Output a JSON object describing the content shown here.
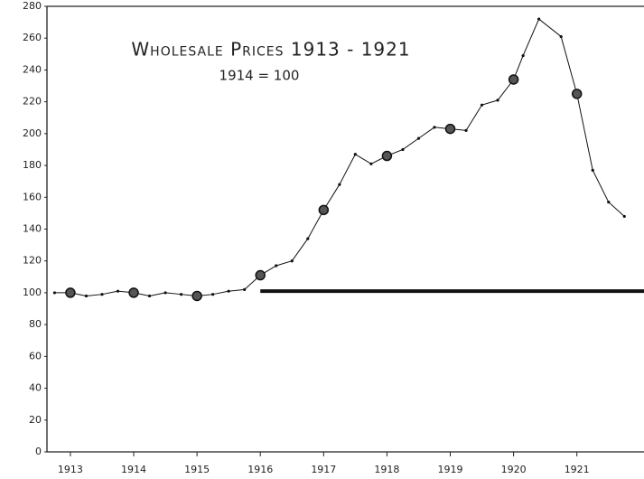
{
  "chart_data": {
    "type": "line",
    "title": "Wholesale Prices 1913 - 1921",
    "subtitle": "1914 = 100",
    "x": [
      1912.75,
      1913,
      1913.25,
      1913.5,
      1913.75,
      1914,
      1914.25,
      1914.5,
      1914.75,
      1915,
      1915.25,
      1915.5,
      1915.75,
      1916,
      1916.25,
      1916.5,
      1916.75,
      1917,
      1917.25,
      1917.5,
      1917.75,
      1918,
      1918.25,
      1918.5,
      1918.75,
      1919,
      1919.25,
      1919.5,
      1919.75,
      1920,
      1920.15,
      1920.4,
      1920.75,
      1921,
      1921.25,
      1921.5,
      1921.75
    ],
    "values": [
      100,
      100,
      98,
      99,
      101,
      100,
      98,
      100,
      99,
      98,
      99,
      101,
      102,
      111,
      117,
      120,
      134,
      152,
      168,
      187,
      181,
      186,
      190,
      197,
      204,
      203,
      202,
      218,
      221,
      234,
      249,
      272,
      261,
      225,
      177,
      157,
      148
    ],
    "color": "#111111",
    "reference_line": {
      "value": 101,
      "from": 1916
    },
    "xlim": [
      1912.63,
      1922.06
    ],
    "xticks": [
      1913,
      1914,
      1915,
      1916,
      1917,
      1918,
      1919,
      1920,
      1921
    ],
    "ylim": [
      0,
      280
    ],
    "yticks": [
      0,
      20,
      40,
      60,
      80,
      100,
      120,
      140,
      160,
      180,
      200,
      220,
      240,
      260,
      280
    ]
  }
}
